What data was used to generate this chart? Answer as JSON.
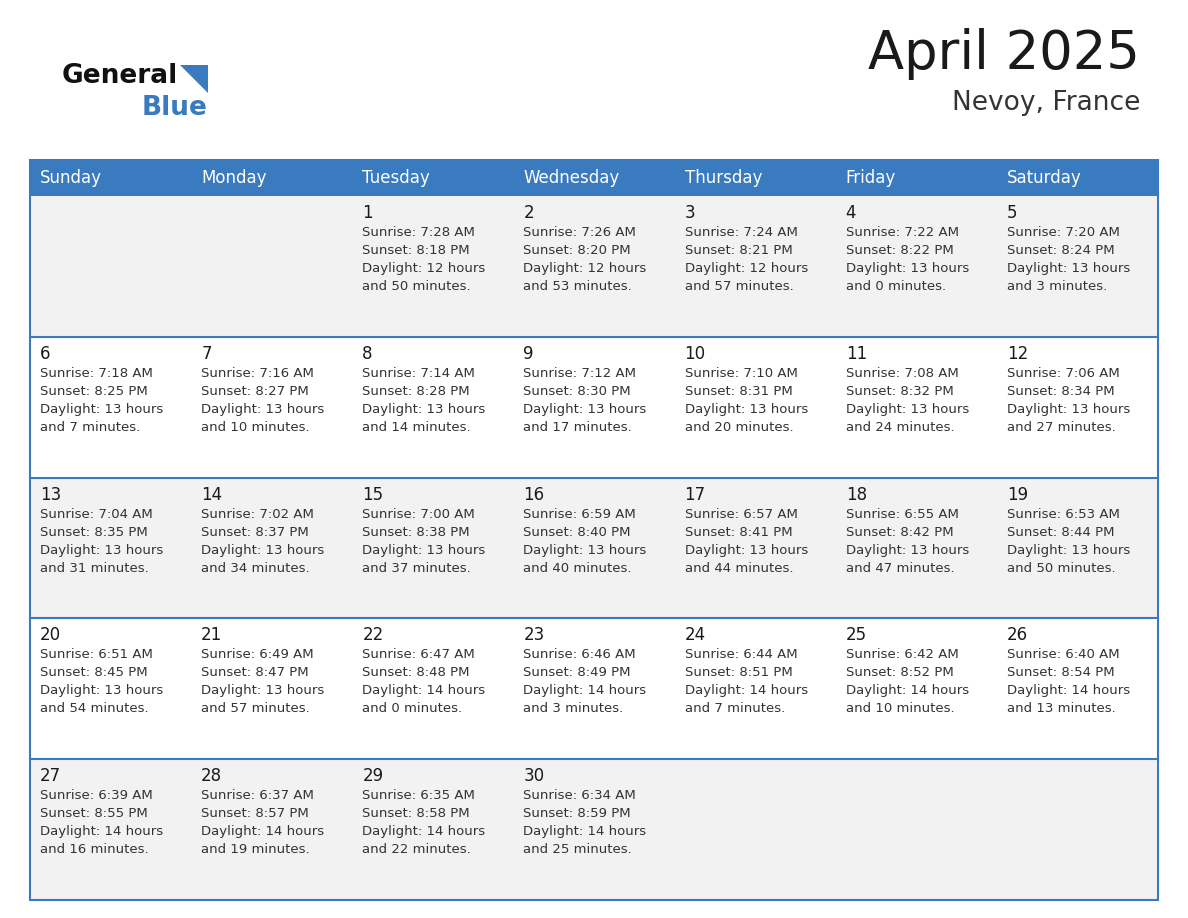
{
  "title": "April 2025",
  "subtitle": "Nevoy, France",
  "header_color": "#3a7abf",
  "header_text_color": "#ffffff",
  "day_names": [
    "Sunday",
    "Monday",
    "Tuesday",
    "Wednesday",
    "Thursday",
    "Friday",
    "Saturday"
  ],
  "row_bg_colors": [
    "#f2f2f2",
    "#ffffff"
  ],
  "border_color": "#3a7abf",
  "text_color": "#333333",
  "days": [
    {
      "day": 1,
      "col": 2,
      "row": 0,
      "sunrise": "7:28 AM",
      "sunset": "8:18 PM",
      "daylight": "12 hours and 50 minutes."
    },
    {
      "day": 2,
      "col": 3,
      "row": 0,
      "sunrise": "7:26 AM",
      "sunset": "8:20 PM",
      "daylight": "12 hours and 53 minutes."
    },
    {
      "day": 3,
      "col": 4,
      "row": 0,
      "sunrise": "7:24 AM",
      "sunset": "8:21 PM",
      "daylight": "12 hours and 57 minutes."
    },
    {
      "day": 4,
      "col": 5,
      "row": 0,
      "sunrise": "7:22 AM",
      "sunset": "8:22 PM",
      "daylight": "13 hours and 0 minutes."
    },
    {
      "day": 5,
      "col": 6,
      "row": 0,
      "sunrise": "7:20 AM",
      "sunset": "8:24 PM",
      "daylight": "13 hours and 3 minutes."
    },
    {
      "day": 6,
      "col": 0,
      "row": 1,
      "sunrise": "7:18 AM",
      "sunset": "8:25 PM",
      "daylight": "13 hours and 7 minutes."
    },
    {
      "day": 7,
      "col": 1,
      "row": 1,
      "sunrise": "7:16 AM",
      "sunset": "8:27 PM",
      "daylight": "13 hours and 10 minutes."
    },
    {
      "day": 8,
      "col": 2,
      "row": 1,
      "sunrise": "7:14 AM",
      "sunset": "8:28 PM",
      "daylight": "13 hours and 14 minutes."
    },
    {
      "day": 9,
      "col": 3,
      "row": 1,
      "sunrise": "7:12 AM",
      "sunset": "8:30 PM",
      "daylight": "13 hours and 17 minutes."
    },
    {
      "day": 10,
      "col": 4,
      "row": 1,
      "sunrise": "7:10 AM",
      "sunset": "8:31 PM",
      "daylight": "13 hours and 20 minutes."
    },
    {
      "day": 11,
      "col": 5,
      "row": 1,
      "sunrise": "7:08 AM",
      "sunset": "8:32 PM",
      "daylight": "13 hours and 24 minutes."
    },
    {
      "day": 12,
      "col": 6,
      "row": 1,
      "sunrise": "7:06 AM",
      "sunset": "8:34 PM",
      "daylight": "13 hours and 27 minutes."
    },
    {
      "day": 13,
      "col": 0,
      "row": 2,
      "sunrise": "7:04 AM",
      "sunset": "8:35 PM",
      "daylight": "13 hours and 31 minutes."
    },
    {
      "day": 14,
      "col": 1,
      "row": 2,
      "sunrise": "7:02 AM",
      "sunset": "8:37 PM",
      "daylight": "13 hours and 34 minutes."
    },
    {
      "day": 15,
      "col": 2,
      "row": 2,
      "sunrise": "7:00 AM",
      "sunset": "8:38 PM",
      "daylight": "13 hours and 37 minutes."
    },
    {
      "day": 16,
      "col": 3,
      "row": 2,
      "sunrise": "6:59 AM",
      "sunset": "8:40 PM",
      "daylight": "13 hours and 40 minutes."
    },
    {
      "day": 17,
      "col": 4,
      "row": 2,
      "sunrise": "6:57 AM",
      "sunset": "8:41 PM",
      "daylight": "13 hours and 44 minutes."
    },
    {
      "day": 18,
      "col": 5,
      "row": 2,
      "sunrise": "6:55 AM",
      "sunset": "8:42 PM",
      "daylight": "13 hours and 47 minutes."
    },
    {
      "day": 19,
      "col": 6,
      "row": 2,
      "sunrise": "6:53 AM",
      "sunset": "8:44 PM",
      "daylight": "13 hours and 50 minutes."
    },
    {
      "day": 20,
      "col": 0,
      "row": 3,
      "sunrise": "6:51 AM",
      "sunset": "8:45 PM",
      "daylight": "13 hours and 54 minutes."
    },
    {
      "day": 21,
      "col": 1,
      "row": 3,
      "sunrise": "6:49 AM",
      "sunset": "8:47 PM",
      "daylight": "13 hours and 57 minutes."
    },
    {
      "day": 22,
      "col": 2,
      "row": 3,
      "sunrise": "6:47 AM",
      "sunset": "8:48 PM",
      "daylight": "14 hours and 0 minutes."
    },
    {
      "day": 23,
      "col": 3,
      "row": 3,
      "sunrise": "6:46 AM",
      "sunset": "8:49 PM",
      "daylight": "14 hours and 3 minutes."
    },
    {
      "day": 24,
      "col": 4,
      "row": 3,
      "sunrise": "6:44 AM",
      "sunset": "8:51 PM",
      "daylight": "14 hours and 7 minutes."
    },
    {
      "day": 25,
      "col": 5,
      "row": 3,
      "sunrise": "6:42 AM",
      "sunset": "8:52 PM",
      "daylight": "14 hours and 10 minutes."
    },
    {
      "day": 26,
      "col": 6,
      "row": 3,
      "sunrise": "6:40 AM",
      "sunset": "8:54 PM",
      "daylight": "14 hours and 13 minutes."
    },
    {
      "day": 27,
      "col": 0,
      "row": 4,
      "sunrise": "6:39 AM",
      "sunset": "8:55 PM",
      "daylight": "14 hours and 16 minutes."
    },
    {
      "day": 28,
      "col": 1,
      "row": 4,
      "sunrise": "6:37 AM",
      "sunset": "8:57 PM",
      "daylight": "14 hours and 19 minutes."
    },
    {
      "day": 29,
      "col": 2,
      "row": 4,
      "sunrise": "6:35 AM",
      "sunset": "8:58 PM",
      "daylight": "14 hours and 22 minutes."
    },
    {
      "day": 30,
      "col": 3,
      "row": 4,
      "sunrise": "6:34 AM",
      "sunset": "8:59 PM",
      "daylight": "14 hours and 25 minutes."
    }
  ]
}
